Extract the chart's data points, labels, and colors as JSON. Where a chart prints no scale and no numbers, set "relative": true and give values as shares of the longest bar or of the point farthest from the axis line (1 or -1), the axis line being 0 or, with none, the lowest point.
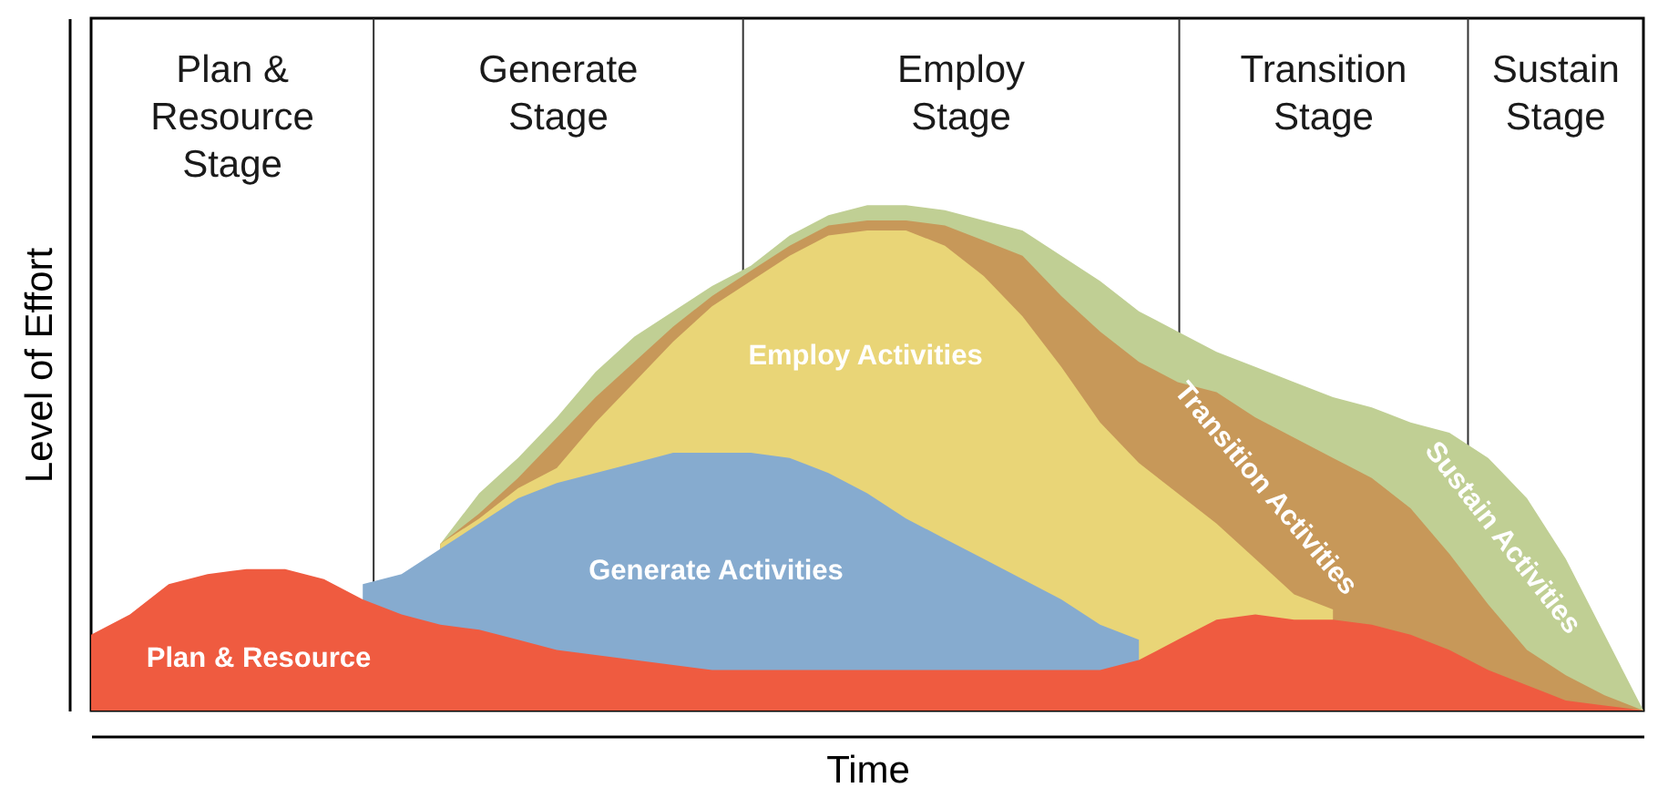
{
  "chart_data": {
    "type": "area",
    "relative": true,
    "xlabel": "Time",
    "ylabel": "Level of Effort",
    "categories": [
      null,
      null,
      null,
      null,
      null,
      null,
      null,
      null,
      null,
      null,
      null,
      null,
      null,
      null,
      null,
      null,
      null,
      null,
      null,
      null,
      null,
      null,
      null,
      null,
      null,
      null,
      null,
      null,
      null,
      null,
      null,
      null,
      null,
      null,
      null,
      null,
      null,
      null,
      null,
      null,
      null
    ],
    "annotations": [
      "Plan & Resource Stage",
      "Generate Stage",
      "Employ Stage",
      "Transition Stage",
      "Sustain Stage"
    ],
    "series": [
      {
        "name": "Sustain Activities",
        "color": "#c0cf94",
        "values": [
          null,
          null,
          null,
          null,
          null,
          null,
          null,
          null,
          null,
          0.33,
          0.43,
          0.5,
          0.58,
          0.67,
          0.74,
          0.79,
          0.84,
          0.88,
          0.94,
          0.98,
          1.0,
          1.0,
          0.99,
          0.97,
          0.95,
          0.9,
          0.85,
          0.79,
          0.75,
          0.71,
          0.68,
          0.65,
          0.62,
          0.6,
          0.57,
          0.55,
          0.5,
          0.42,
          0.3,
          0.15,
          0
        ]
      },
      {
        "name": "Transition Activities",
        "color": "#c79859",
        "values": [
          null,
          null,
          null,
          null,
          null,
          null,
          null,
          null,
          null,
          0.33,
          0.39,
          0.46,
          0.54,
          0.62,
          0.69,
          0.76,
          0.82,
          0.87,
          0.92,
          0.96,
          0.97,
          0.97,
          0.96,
          0.93,
          0.9,
          0.82,
          0.75,
          0.69,
          0.65,
          0.63,
          0.58,
          0.54,
          0.5,
          0.46,
          0.4,
          0.31,
          0.21,
          0.12,
          0.07,
          0.03,
          0
        ]
      },
      {
        "name": "Employ Activities",
        "color": "#e9d577",
        "values": [
          null,
          null,
          null,
          null,
          null,
          null,
          null,
          null,
          null,
          0.33,
          0.38,
          0.44,
          0.48,
          0.57,
          0.65,
          0.73,
          0.8,
          0.85,
          0.9,
          0.94,
          0.95,
          0.95,
          0.92,
          0.86,
          0.78,
          0.68,
          0.57,
          0.49,
          0.43,
          0.37,
          0.3,
          0.23,
          0.2,
          null,
          null,
          null,
          null,
          null,
          null,
          null,
          null
        ]
      },
      {
        "name": "Generate Activities",
        "color": "#86abcf",
        "values": [
          null,
          null,
          null,
          null,
          null,
          null,
          null,
          0.25,
          0.27,
          0.32,
          0.37,
          0.42,
          0.45,
          0.47,
          0.49,
          0.51,
          0.51,
          0.51,
          0.5,
          0.47,
          0.43,
          0.38,
          0.34,
          0.3,
          0.26,
          0.22,
          0.17,
          0.14,
          null,
          null,
          null,
          null,
          null,
          null,
          null,
          null,
          null,
          null,
          null,
          null,
          null
        ]
      },
      {
        "name": "Plan & Resource",
        "color": "#ef5b40",
        "values": [
          0.15,
          0.19,
          0.25,
          0.27,
          0.28,
          0.28,
          0.26,
          0.22,
          0.19,
          0.17,
          0.16,
          0.14,
          0.12,
          0.11,
          0.1,
          0.09,
          0.08,
          0.08,
          0.08,
          0.08,
          0.08,
          0.08,
          0.08,
          0.08,
          0.08,
          0.08,
          0.08,
          0.1,
          0.14,
          0.18,
          0.19,
          0.18,
          0.18,
          0.17,
          0.15,
          0.12,
          0.08,
          0.05,
          0.02,
          0.01,
          0
        ]
      }
    ]
  }
}
